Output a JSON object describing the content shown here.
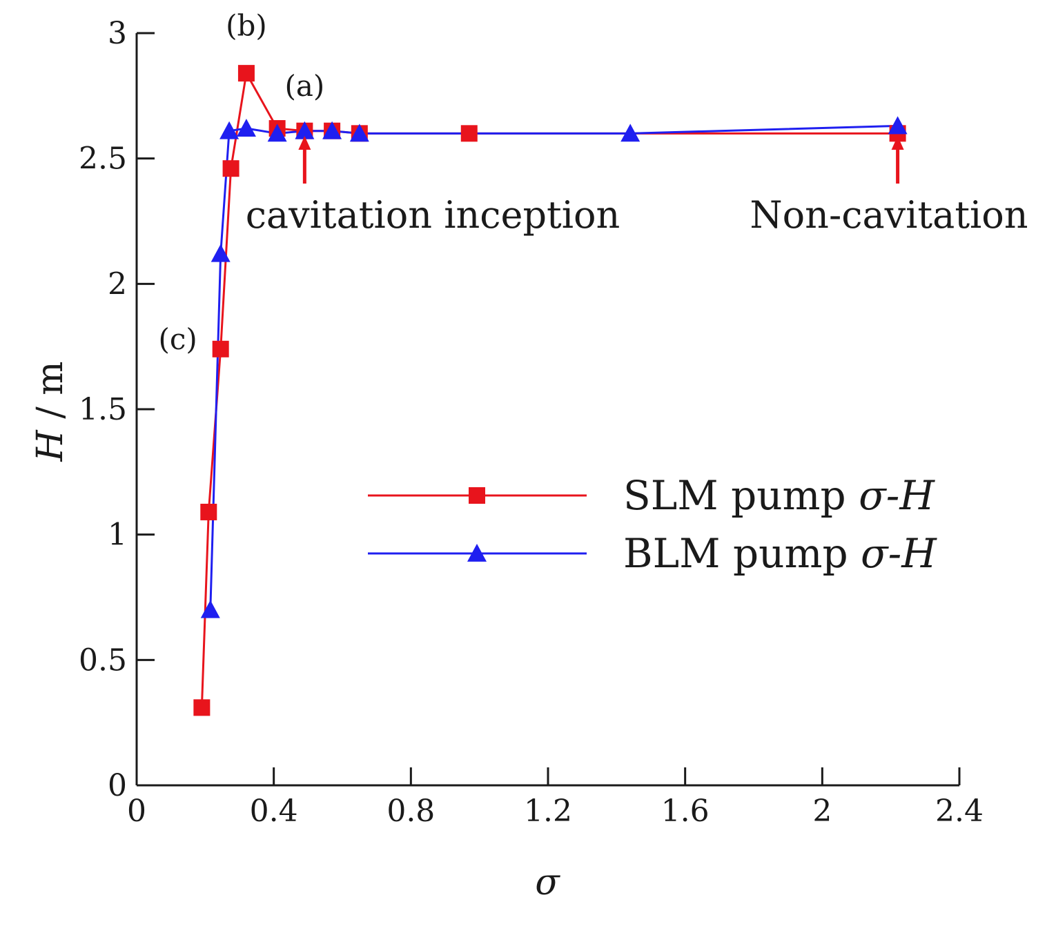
{
  "chart_data": {
    "type": "line",
    "xlabel": "σ",
    "ylabel": "H / m",
    "xlim": [
      0,
      2.4
    ],
    "ylim": [
      0,
      3
    ],
    "xticks": [
      0,
      0.4,
      0.8,
      1.2,
      1.6,
      2,
      2.4
    ],
    "xtick_labels": [
      "0",
      "0.4",
      "0.8",
      "1.2",
      "1.6",
      "2",
      "2.4"
    ],
    "yticks": [
      0,
      0.5,
      1,
      1.5,
      2,
      2.5,
      3
    ],
    "ytick_labels": [
      "0",
      "0.5",
      "1",
      "1.5",
      "2",
      "2.5",
      "3"
    ],
    "grid": false,
    "legend_position": "center-right",
    "series": [
      {
        "name": "SLM pump σ-H",
        "legend_prefix": "SLM pump ",
        "legend_suffix": "σ-H",
        "color": "#e8141c",
        "marker": "square",
        "x": [
          0.19,
          0.21,
          0.245,
          0.275,
          0.32,
          0.41,
          0.49,
          0.57,
          0.65,
          0.97,
          2.22
        ],
        "y": [
          0.31,
          1.09,
          1.74,
          2.46,
          2.84,
          2.62,
          2.61,
          2.61,
          2.6,
          2.6,
          2.6
        ]
      },
      {
        "name": "BLM pump σ-H",
        "legend_prefix": "BLM pump ",
        "legend_suffix": "σ-H",
        "color": "#1f1ff0",
        "marker": "triangle",
        "x": [
          0.215,
          0.245,
          0.27,
          0.32,
          0.41,
          0.49,
          0.57,
          0.65,
          1.44,
          2.22
        ],
        "y": [
          0.7,
          2.12,
          2.61,
          2.62,
          2.6,
          2.61,
          2.61,
          2.6,
          2.6,
          2.63
        ]
      }
    ],
    "annotations": [
      {
        "text": "(a)",
        "x": 0.49,
        "y": 2.75
      },
      {
        "text": "(b)",
        "x": 0.32,
        "y": 2.99
      },
      {
        "text": "(c)",
        "x": 0.12,
        "y": 1.74
      }
    ],
    "arrows": [
      {
        "label": "cavitation inception",
        "x": 0.49,
        "y_tail": 2.4,
        "y_head": 2.59
      },
      {
        "label": "Non-cavitation",
        "x": 2.22,
        "y_tail": 2.4,
        "y_head": 2.59
      }
    ]
  }
}
